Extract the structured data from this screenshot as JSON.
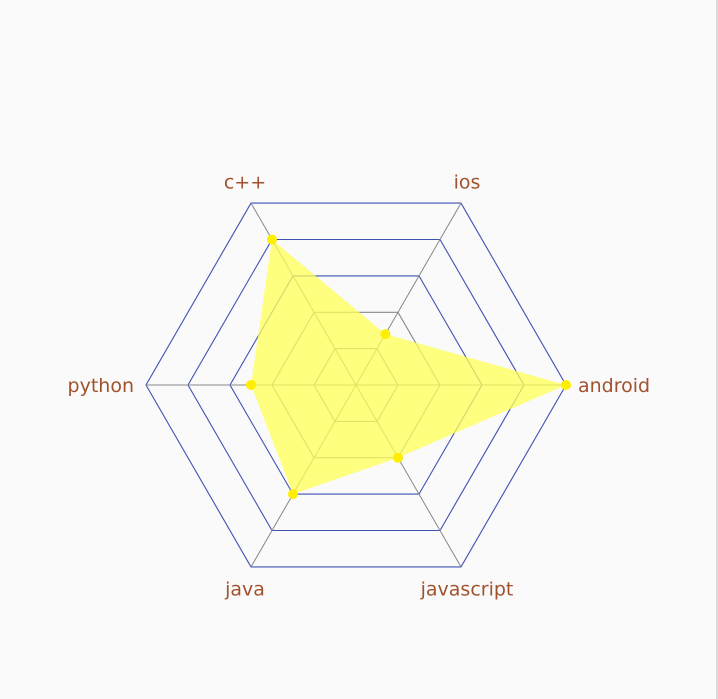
{
  "chart_data": {
    "type": "radar",
    "categories": [
      "android",
      "ios",
      "c++",
      "python",
      "java",
      "javascript"
    ],
    "max": 5,
    "levels": 5,
    "series": [
      {
        "values": [
          5.0,
          1.4,
          4.0,
          2.5,
          3.0,
          2.0
        ]
      }
    ],
    "colors": {
      "fill": "#ffff55",
      "fill_opacity": 0.75,
      "point": "#ffee00",
      "outer_grid": "#3f51b5",
      "inner_grid": "#888888",
      "label": "#a0522d"
    },
    "grid": true,
    "legend": false
  }
}
